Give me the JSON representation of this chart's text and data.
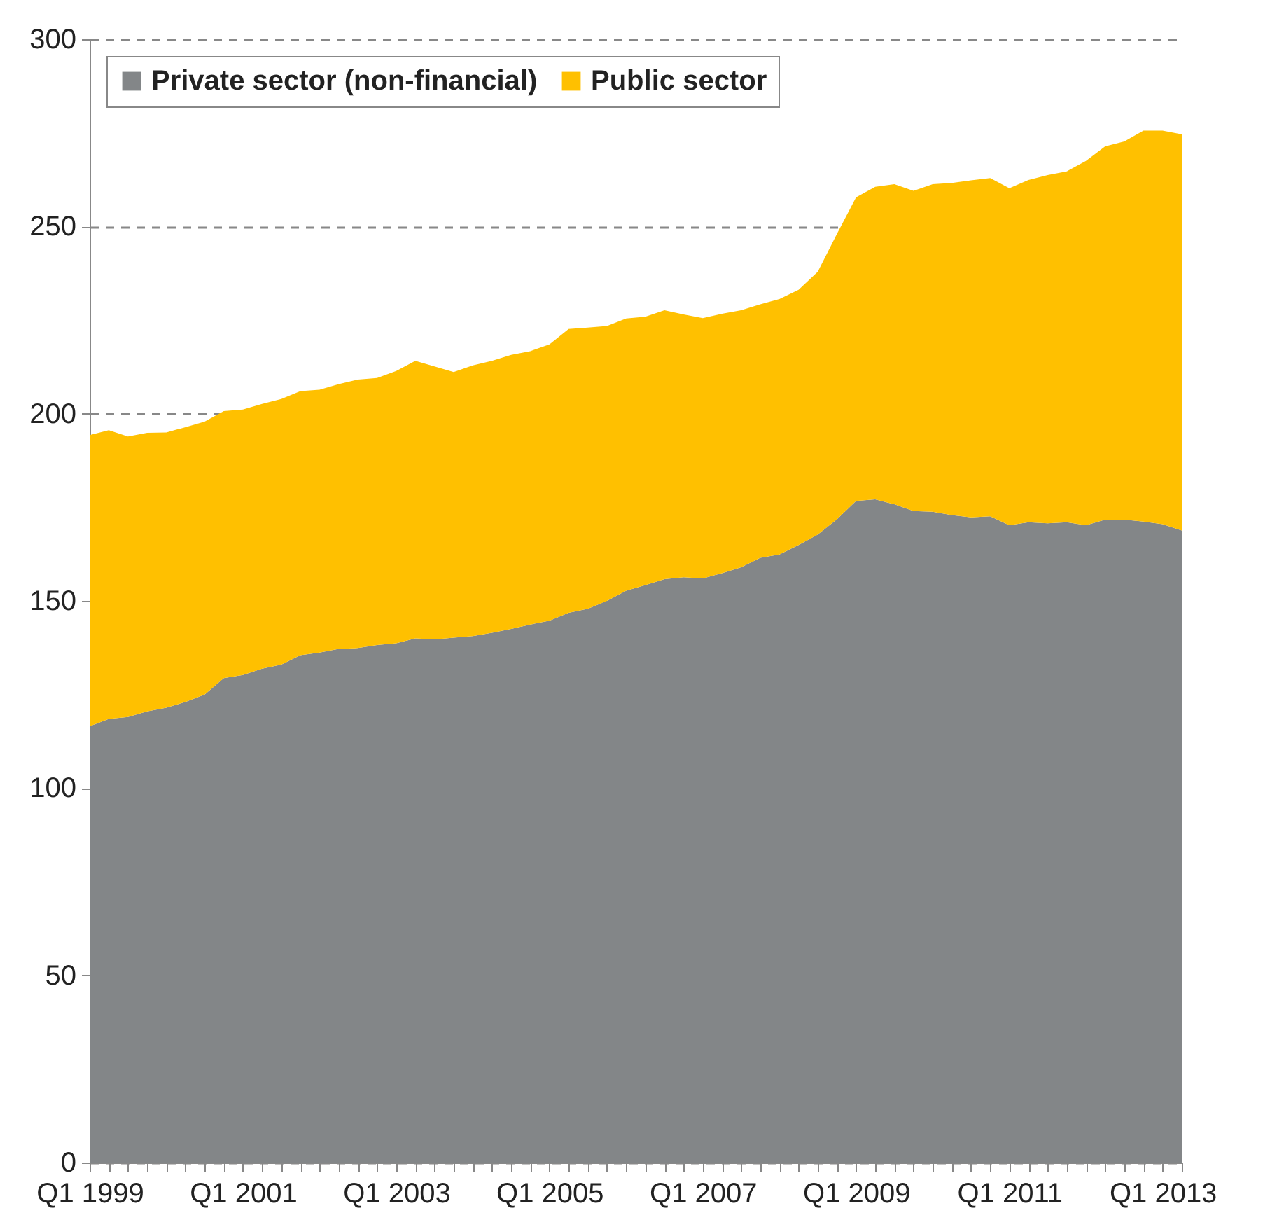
{
  "chart_data": {
    "type": "area",
    "stacked": true,
    "legend": "top left",
    "grid": "y",
    "ylim": [
      0,
      300
    ],
    "yticks": [
      0,
      50,
      100,
      150,
      200,
      250,
      300
    ],
    "categories": [
      "Q1 1999",
      null,
      null,
      null,
      null,
      null,
      null,
      null,
      "Q1 2001",
      null,
      null,
      null,
      null,
      null,
      null,
      null,
      "Q1 2003",
      null,
      null,
      null,
      null,
      null,
      null,
      null,
      "Q1 2005",
      null,
      null,
      null,
      null,
      null,
      null,
      null,
      "Q1 2007",
      null,
      null,
      null,
      null,
      null,
      null,
      null,
      "Q1 2009",
      null,
      null,
      null,
      null,
      null,
      null,
      null,
      "Q1 2011",
      null,
      null,
      null,
      null,
      null,
      null,
      null,
      "Q1 2013",
      null
    ],
    "series": [
      {
        "name": "Private sector (non-financial)",
        "color": "#838688",
        "values": [
          116.5,
          118.5,
          119,
          120.5,
          121.5,
          123,
          125,
          129.4,
          130.2,
          131.9,
          133,
          135.5,
          136.2,
          137.2,
          137.4,
          138.2,
          138.7,
          140,
          139.7,
          140.2,
          140.6,
          141.5,
          142.5,
          143.7,
          144.7,
          146.8,
          147.9,
          150,
          152.7,
          154.2,
          155.8,
          156.3,
          156,
          157.4,
          159,
          161.5,
          162.4,
          164.9,
          167.7,
          171.8,
          176.7,
          177.1,
          175.8,
          174,
          173.8,
          172.9,
          172.3,
          172.6,
          170.2,
          171,
          170.7,
          171,
          170.2,
          171.7,
          171.7,
          171.2,
          170.5,
          168.8
        ]
      },
      {
        "name": "Public sector",
        "color": "#ffc000",
        "values": [
          77.8,
          77.1,
          74.9,
          74.4,
          73.5,
          73.4,
          72.9,
          71.3,
          70.9,
          70.7,
          70.9,
          70.5,
          70.2,
          70.7,
          71.7,
          71.3,
          72.7,
          74.1,
          72.9,
          70.9,
          72.3,
          72.6,
          73.2,
          73,
          73.8,
          75.8,
          75.1,
          73.4,
          72.7,
          71.7,
          71.8,
          70.2,
          69.5,
          69.3,
          68.6,
          67.7,
          68.2,
          68.2,
          70.2,
          76.2,
          81.1,
          83.5,
          85.5,
          85.5,
          87.5,
          88.7,
          90,
          90.3,
          90,
          91.4,
          93,
          93.7,
          97.3,
          99.7,
          101,
          104.4,
          105.1,
          105.8
        ]
      }
    ]
  }
}
